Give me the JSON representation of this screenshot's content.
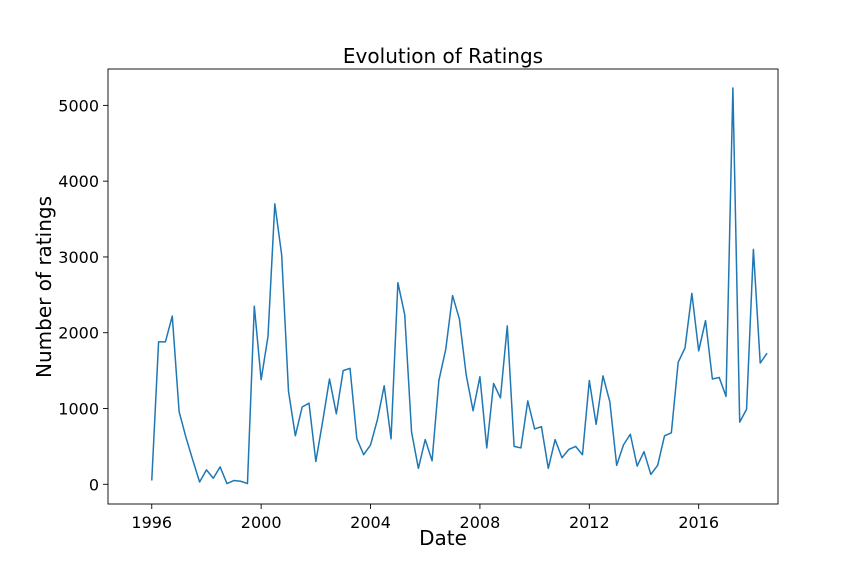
{
  "chart_data": {
    "type": "line",
    "title": "Evolution of Ratings",
    "xlabel": "Date",
    "ylabel": "Number of ratings",
    "xlim": [
      1994.4,
      2018.9
    ],
    "ylim": [
      -260,
      5480
    ],
    "x_ticks": [
      1996,
      2000,
      2004,
      2008,
      2012,
      2016
    ],
    "x_tick_labels": [
      "1996",
      "2000",
      "2004",
      "2008",
      "2012",
      "2016"
    ],
    "y_ticks": [
      0,
      1000,
      2000,
      3000,
      4000,
      5000
    ],
    "y_tick_labels": [
      "0",
      "1000",
      "2000",
      "3000",
      "4000",
      "5000"
    ],
    "grid": false,
    "legend": "none",
    "series": [
      {
        "color": "#1f77b4",
        "x": [
          1996.0,
          1996.25,
          1996.5,
          1996.75,
          1997.0,
          1997.25,
          1997.5,
          1997.75,
          1998.0,
          1998.25,
          1998.5,
          1998.75,
          1999.0,
          1999.25,
          1999.5,
          1999.75,
          2000.0,
          2000.25,
          2000.5,
          2000.75,
          2001.0,
          2001.25,
          2001.5,
          2001.75,
          2002.0,
          2002.25,
          2002.5,
          2002.75,
          2003.0,
          2003.25,
          2003.5,
          2003.75,
          2004.0,
          2004.25,
          2004.5,
          2004.75,
          2005.0,
          2005.25,
          2005.5,
          2005.75,
          2006.0,
          2006.25,
          2006.5,
          2006.75,
          2007.0,
          2007.25,
          2007.5,
          2007.75,
          2008.0,
          2008.25,
          2008.5,
          2008.75,
          2009.0,
          2009.25,
          2009.5,
          2009.75,
          2010.0,
          2010.25,
          2010.5,
          2010.75,
          2011.0,
          2011.25,
          2011.5,
          2011.75,
          2012.0,
          2012.25,
          2012.5,
          2012.75,
          2013.0,
          2013.25,
          2013.5,
          2013.75,
          2014.0,
          2014.25,
          2014.5,
          2014.75,
          2015.0,
          2015.25,
          2015.5,
          2015.75,
          2016.0,
          2016.25,
          2016.5,
          2016.75,
          2017.0,
          2017.25,
          2017.5,
          2017.75,
          2018.0,
          2018.25,
          2018.5
        ],
        "y": [
          50,
          1880,
          1880,
          2220,
          960,
          620,
          320,
          30,
          190,
          80,
          230,
          10,
          50,
          40,
          10,
          2350,
          1380,
          1950,
          3700,
          3030,
          1230,
          640,
          1020,
          1070,
          300,
          830,
          1390,
          930,
          1500,
          1530,
          600,
          390,
          520,
          850,
          1300,
          600,
          2660,
          2240,
          690,
          210,
          590,
          310,
          1370,
          1780,
          2490,
          2180,
          1440,
          970,
          1420,
          480,
          1330,
          1140,
          2090,
          500,
          480,
          1100,
          730,
          760,
          210,
          590,
          350,
          460,
          500,
          390,
          1370,
          790,
          1430,
          1090,
          250,
          520,
          660,
          240,
          430,
          130,
          250,
          640,
          680,
          1610,
          1800,
          2520,
          1760,
          2160,
          1390,
          1410,
          1160,
          5230,
          820,
          990,
          3100,
          1600,
          1730
        ]
      }
    ]
  }
}
